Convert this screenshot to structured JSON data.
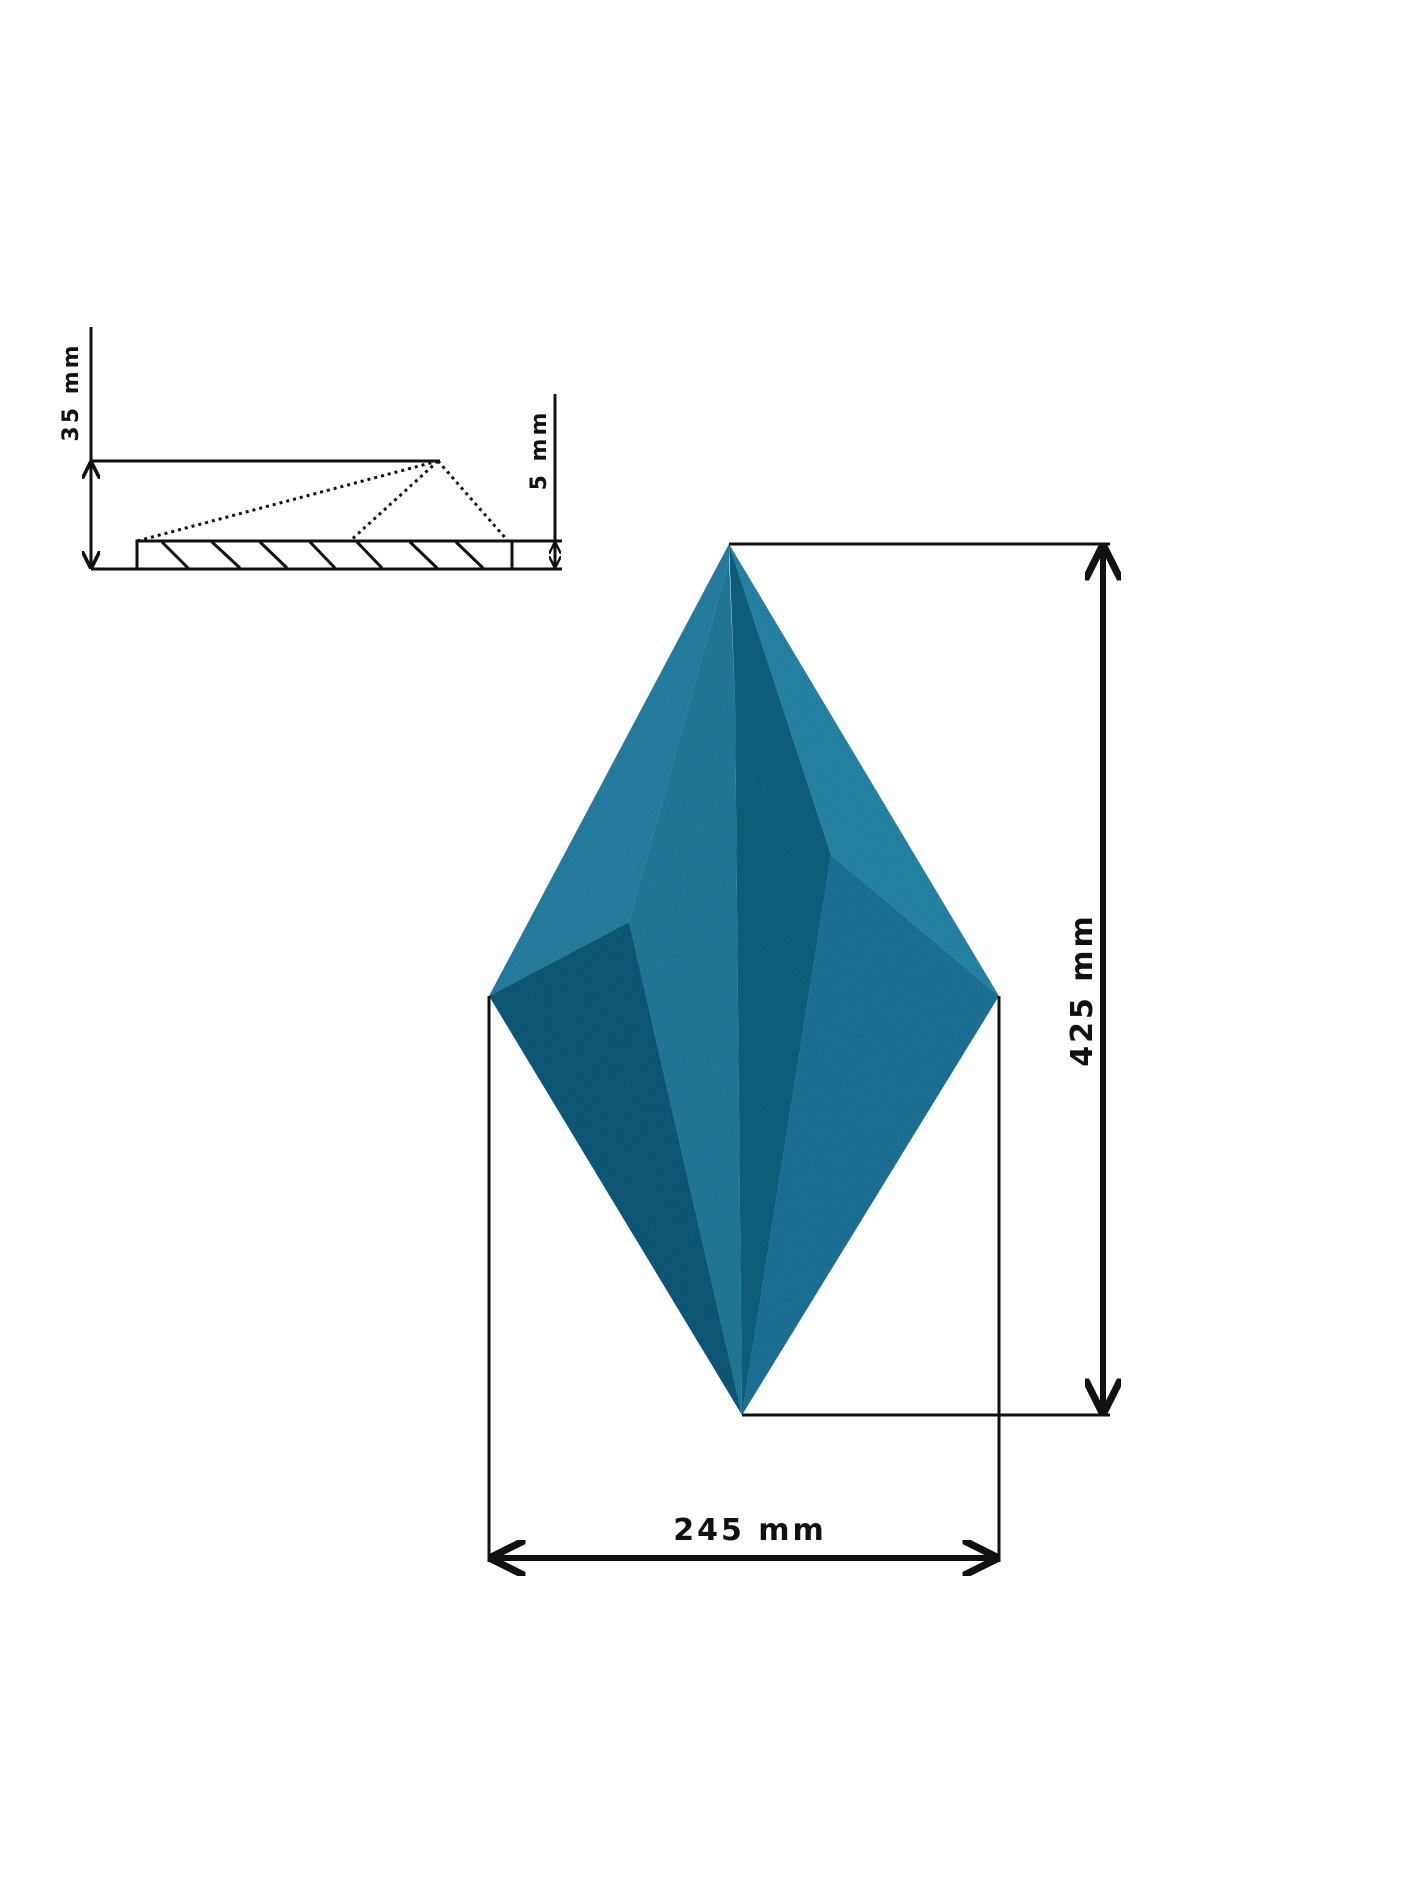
{
  "dimensions": {
    "height_label": "425 mm",
    "width_label": "245 mm",
    "profile_height_label": "35 mm",
    "base_thickness_label": "5 mm"
  },
  "colors": {
    "panel_light": "#2f8fb3",
    "panel_mid": "#1f7597",
    "panel_dark": "#155a78",
    "line": "#111111"
  }
}
